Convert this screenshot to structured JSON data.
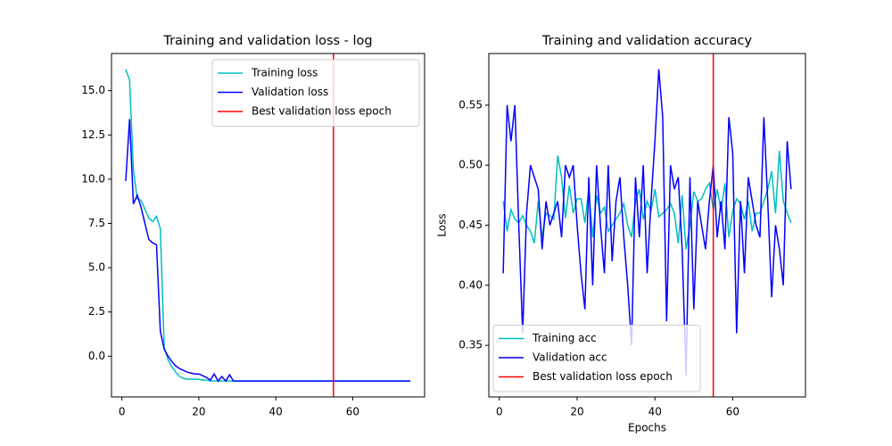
{
  "chart_data": [
    {
      "type": "line",
      "title": "Training and validation loss - log",
      "x": [
        1,
        2,
        3,
        4,
        5,
        6,
        7,
        8,
        9,
        10,
        11,
        12,
        13,
        14,
        15,
        16,
        17,
        18,
        19,
        20,
        21,
        22,
        23,
        24,
        25,
        26,
        27,
        28,
        29,
        30,
        31,
        32,
        33,
        34,
        35,
        36,
        37,
        38,
        39,
        40,
        41,
        42,
        43,
        44,
        45,
        46,
        47,
        48,
        49,
        50,
        51,
        52,
        53,
        54,
        55,
        56,
        57,
        58,
        59,
        60,
        61,
        62,
        63,
        64,
        65,
        66,
        67,
        68,
        69,
        70,
        71,
        72,
        73,
        74,
        75
      ],
      "series": [
        {
          "name": "Training loss",
          "color": "#00bfbf",
          "values": [
            16.2,
            15.6,
            10.5,
            8.9,
            8.8,
            8.3,
            7.8,
            7.6,
            7.9,
            7.2,
            0.5,
            -0.2,
            -0.6,
            -0.9,
            -1.15,
            -1.25,
            -1.3,
            -1.3,
            -1.3,
            -1.3,
            -1.35,
            -1.35,
            -1.4,
            -1.4,
            -1.4,
            -1.4,
            -1.4,
            -1.4,
            -1.4,
            -1.4,
            -1.4,
            -1.4,
            -1.4,
            -1.4,
            -1.4,
            -1.4,
            -1.4,
            -1.4,
            -1.4,
            -1.4,
            -1.4,
            -1.4,
            -1.4,
            -1.4,
            -1.4,
            -1.4,
            -1.4,
            -1.4,
            -1.4,
            -1.4,
            -1.4,
            -1.4,
            -1.4,
            -1.4,
            -1.4,
            -1.4,
            -1.4,
            -1.4,
            -1.4,
            -1.4,
            -1.4,
            -1.4,
            -1.4,
            -1.4,
            -1.4,
            -1.4,
            -1.4,
            -1.4,
            -1.4,
            -1.4,
            -1.4,
            -1.4,
            -1.4,
            -1.4,
            -1.4
          ]
        },
        {
          "name": "Validation loss",
          "color": "#0000ff",
          "values": [
            9.9,
            13.4,
            8.6,
            9.1,
            8.4,
            7.5,
            6.6,
            6.4,
            6.3,
            1.4,
            0.4,
            0.0,
            -0.3,
            -0.55,
            -0.7,
            -0.8,
            -0.9,
            -0.95,
            -1.0,
            -1.0,
            -1.1,
            -1.2,
            -1.35,
            -1.0,
            -1.4,
            -1.15,
            -1.4,
            -1.05,
            -1.4,
            -1.4,
            -1.4,
            -1.4,
            -1.4,
            -1.4,
            -1.4,
            -1.4,
            -1.4,
            -1.4,
            -1.4,
            -1.4,
            -1.4,
            -1.4,
            -1.4,
            -1.4,
            -1.4,
            -1.4,
            -1.4,
            -1.4,
            -1.4,
            -1.4,
            -1.4,
            -1.4,
            -1.4,
            -1.4,
            -1.4,
            -1.4,
            -1.4,
            -1.4,
            -1.4,
            -1.4,
            -1.4,
            -1.4,
            -1.4,
            -1.4,
            -1.4,
            -1.4,
            -1.4,
            -1.4,
            -1.4,
            -1.4,
            -1.4,
            -1.4,
            -1.4,
            -1.4,
            -1.4
          ]
        }
      ],
      "vline": {
        "name": "Best validation loss epoch",
        "color": "#ff0000",
        "x": 55
      },
      "xlim": [
        -2.7,
        78.7
      ],
      "xticks": [
        0,
        20,
        40,
        60
      ],
      "ylim": [
        -2.3,
        17.1
      ],
      "yticks": [
        {
          "value": 0,
          "label": "0.0"
        },
        2.5,
        {
          "value": 5,
          "label": "5.0"
        },
        7.5,
        {
          "value": 10,
          "label": "10.0"
        },
        12.5,
        {
          "value": 15,
          "label": "15.0"
        }
      ],
      "legend": "upper right"
    },
    {
      "type": "line",
      "title": "Training and validation accuracy",
      "xlabel": "Epochs",
      "ylabel": "Loss",
      "x": [
        1,
        2,
        3,
        4,
        5,
        6,
        7,
        8,
        9,
        10,
        11,
        12,
        13,
        14,
        15,
        16,
        17,
        18,
        19,
        20,
        21,
        22,
        23,
        24,
        25,
        26,
        27,
        28,
        29,
        30,
        31,
        32,
        33,
        34,
        35,
        36,
        37,
        38,
        39,
        40,
        41,
        42,
        43,
        44,
        45,
        46,
        47,
        48,
        49,
        50,
        51,
        52,
        53,
        54,
        55,
        56,
        57,
        58,
        59,
        60,
        61,
        62,
        63,
        64,
        65,
        66,
        67,
        68,
        69,
        70,
        71,
        72,
        73,
        74,
        75
      ],
      "series": [
        {
          "name": "Training acc",
          "color": "#00bfbf",
          "values": [
            0.47,
            0.445,
            0.463,
            0.455,
            0.452,
            0.458,
            0.45,
            0.445,
            0.435,
            0.47,
            0.44,
            0.46,
            0.458,
            0.455,
            0.508,
            0.49,
            0.456,
            0.483,
            0.46,
            0.472,
            0.472,
            0.452,
            0.48,
            0.44,
            0.475,
            0.46,
            0.465,
            0.445,
            0.45,
            0.455,
            0.46,
            0.468,
            0.45,
            0.44,
            0.47,
            0.48,
            0.455,
            0.47,
            0.462,
            0.48,
            0.457,
            0.46,
            0.463,
            0.468,
            0.46,
            0.435,
            0.475,
            0.43,
            0.45,
            0.478,
            0.47,
            0.472,
            0.48,
            0.485,
            0.463,
            0.48,
            0.462,
            0.485,
            0.44,
            0.462,
            0.472,
            0.468,
            0.455,
            0.47,
            0.445,
            0.46,
            0.46,
            0.47,
            0.48,
            0.495,
            0.46,
            0.512,
            0.47,
            0.46,
            0.452
          ]
        },
        {
          "name": "Validation acc",
          "color": "#0000ff",
          "values": [
            0.41,
            0.55,
            0.52,
            0.55,
            0.45,
            0.36,
            0.46,
            0.5,
            0.49,
            0.48,
            0.43,
            0.47,
            0.45,
            0.46,
            0.47,
            0.44,
            0.5,
            0.49,
            0.5,
            0.45,
            0.41,
            0.38,
            0.49,
            0.4,
            0.5,
            0.45,
            0.41,
            0.5,
            0.42,
            0.47,
            0.49,
            0.44,
            0.4,
            0.35,
            0.49,
            0.44,
            0.5,
            0.41,
            0.47,
            0.52,
            0.58,
            0.54,
            0.37,
            0.5,
            0.48,
            0.49,
            0.43,
            0.325,
            0.49,
            0.38,
            0.47,
            0.45,
            0.43,
            0.47,
            0.5,
            0.44,
            0.47,
            0.43,
            0.54,
            0.51,
            0.36,
            0.47,
            0.41,
            0.49,
            0.47,
            0.45,
            0.44,
            0.54,
            0.47,
            0.39,
            0.45,
            0.43,
            0.4,
            0.52,
            0.48
          ]
        }
      ],
      "vline": {
        "name": "Best validation loss epoch",
        "color": "#ff0000",
        "x": 55
      },
      "xlim": [
        -2.7,
        78.7
      ],
      "xticks": [
        0,
        20,
        40,
        60
      ],
      "ylim": [
        0.307,
        0.593
      ],
      "yticks": [
        0.35,
        {
          "value": 0.4,
          "label": "0.40"
        },
        0.45,
        {
          "value": 0.5,
          "label": "0.50"
        },
        0.55
      ],
      "legend": "lower left"
    }
  ]
}
